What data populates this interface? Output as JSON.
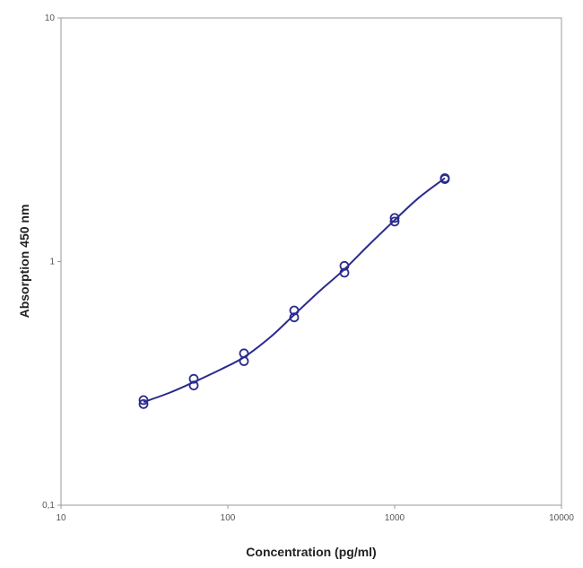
{
  "chart_data": {
    "type": "scatter",
    "xlabel": "Concentration (pg/ml)",
    "ylabel": "Absorption 450 nm",
    "xscale": "log",
    "yscale": "log",
    "xlim": [
      10,
      10000
    ],
    "ylim": [
      0.1,
      10
    ],
    "xticks": [
      "10",
      "100",
      "1000",
      "10000"
    ],
    "yticks": [
      "0,1",
      "1",
      "10"
    ],
    "grid": false,
    "color": "#2b2b8c",
    "points": [
      {
        "x": 31.25,
        "y": 0.27
      },
      {
        "x": 31.25,
        "y": 0.26
      },
      {
        "x": 62.5,
        "y": 0.33
      },
      {
        "x": 62.5,
        "y": 0.31
      },
      {
        "x": 125,
        "y": 0.42
      },
      {
        "x": 125,
        "y": 0.39
      },
      {
        "x": 250,
        "y": 0.63
      },
      {
        "x": 250,
        "y": 0.59
      },
      {
        "x": 500,
        "y": 0.96
      },
      {
        "x": 500,
        "y": 0.9
      },
      {
        "x": 1000,
        "y": 1.51
      },
      {
        "x": 1000,
        "y": 1.46
      },
      {
        "x": 2000,
        "y": 2.2
      },
      {
        "x": 2000,
        "y": 2.18
      }
    ],
    "fit_curve": {
      "x": [
        31.25,
        45,
        62.5,
        90,
        125,
        180,
        250,
        350,
        500,
        700,
        1000,
        1400,
        2000
      ],
      "y": [
        0.265,
        0.29,
        0.32,
        0.36,
        0.405,
        0.49,
        0.605,
        0.75,
        0.93,
        1.17,
        1.48,
        1.83,
        2.2
      ]
    }
  }
}
